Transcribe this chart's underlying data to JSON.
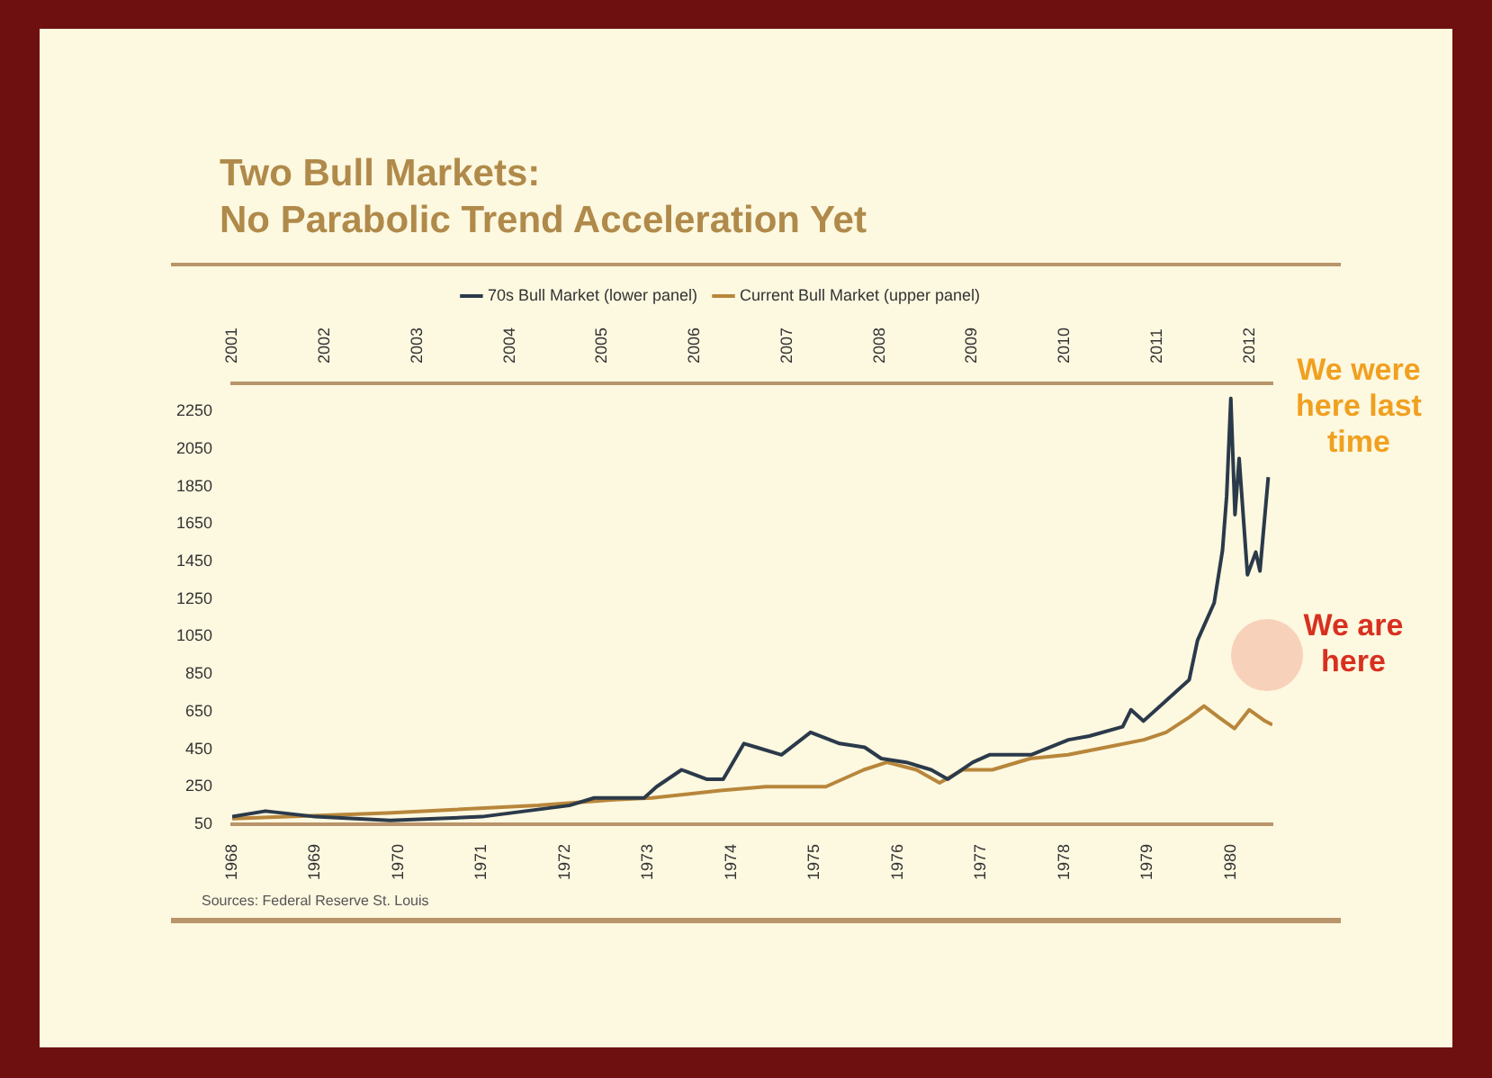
{
  "chart_data": {
    "type": "line",
    "title": "Two Bull Markets:",
    "subtitle": "No Parabolic Trend Acceleration Yet",
    "annotations": [
      "We were here last time",
      "We are here",
      "Sources: Federal Reserve St. Louis"
    ],
    "legend": "top",
    "marker": "none",
    "xlim": [
      1968,
      1980.5
    ],
    "xticks": [
      1968,
      1969,
      1970,
      1971,
      1972,
      1973,
      1974,
      1975,
      1976,
      1977,
      1978,
      1979,
      1980
    ],
    "x2lim": [
      2001,
      2012.25
    ],
    "x2ticks": [
      2001,
      2002,
      2003,
      2004,
      2005,
      2006,
      2007,
      2008,
      2009,
      2010,
      2011,
      2012
    ],
    "ylim": [
      50,
      2400
    ],
    "yticks": [
      50,
      250,
      450,
      650,
      850,
      1050,
      1250,
      1450,
      1650,
      1850,
      2050,
      2250
    ],
    "series": [
      {
        "name": "70s Bull Market (lower panel)",
        "color": "#2b3a4a",
        "x": [
          1968.0,
          1968.4,
          1969.0,
          1969.9,
          1971.0,
          1972.05,
          1972.35,
          1972.95,
          1973.1,
          1973.4,
          1973.7,
          1973.9,
          1974.15,
          1974.3,
          1974.6,
          1974.95,
          1975.3,
          1975.6,
          1975.8,
          1976.1,
          1976.4,
          1976.6,
          1976.9,
          1977.1,
          1977.6,
          1978.05,
          1978.3,
          1978.7,
          1978.8,
          1978.95,
          1979.2,
          1979.5,
          1979.6,
          1979.8,
          1979.9,
          1979.95,
          1980.0,
          1980.05,
          1980.1,
          1980.2,
          1980.3,
          1980.35,
          1980.45
        ],
        "values": [
          90,
          120,
          90,
          70,
          90,
          150,
          190,
          190,
          250,
          340,
          290,
          290,
          480,
          460,
          420,
          540,
          480,
          460,
          400,
          380,
          340,
          290,
          380,
          420,
          420,
          500,
          520,
          570,
          660,
          600,
          700,
          820,
          1030,
          1230,
          1510,
          1800,
          2320,
          1700,
          2000,
          1380,
          1500,
          1400,
          1900
        ]
      },
      {
        "name": "Current Bull Market (upper panel)",
        "color": "#b8863b",
        "axis": "x2",
        "x": [
          2001.0,
          2002.68,
          2004.31,
          2005.13,
          2005.54,
          2006.28,
          2006.77,
          2007.42,
          2007.83,
          2008.08,
          2008.4,
          2008.65,
          2008.9,
          2009.22,
          2009.63,
          2010.04,
          2010.45,
          2010.86,
          2011.1,
          2011.35,
          2011.51,
          2011.67,
          2011.84,
          2012.0,
          2012.17,
          2012.25
        ],
        "values": [
          80,
          110,
          150,
          180,
          190,
          230,
          250,
          250,
          340,
          380,
          340,
          270,
          340,
          340,
          400,
          420,
          460,
          500,
          540,
          620,
          680,
          620,
          560,
          660,
          600,
          580
        ]
      }
    ]
  }
}
